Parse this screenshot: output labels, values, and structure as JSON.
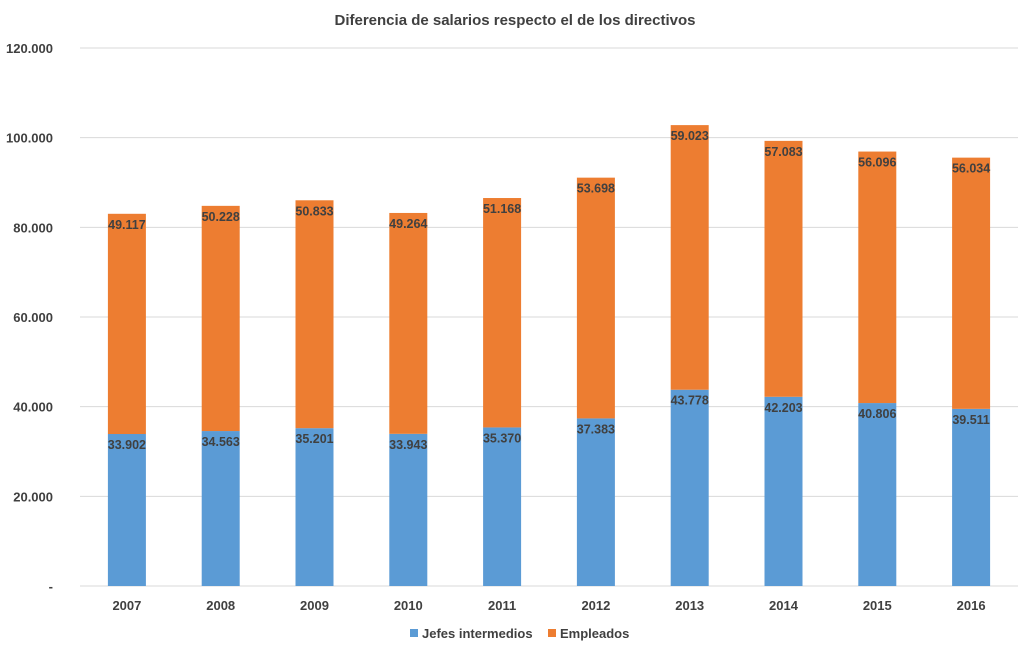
{
  "chart_data": {
    "type": "bar",
    "stacked": true,
    "title": "Diferencia de salarios respecto el de los directivos",
    "xlabel": "",
    "ylabel": "",
    "ylim": [
      0,
      120000
    ],
    "yticks": [
      0,
      20000,
      40000,
      60000,
      80000,
      100000,
      120000
    ],
    "ytick_labels": [
      "-",
      "20.000",
      "40.000",
      "60.000",
      "80.000",
      "100.000",
      "120.000"
    ],
    "grid": true,
    "legend_position": "bottom",
    "categories": [
      "2007",
      "2008",
      "2009",
      "2010",
      "2011",
      "2012",
      "2013",
      "2014",
      "2015",
      "2016"
    ],
    "series": [
      {
        "name": "Jefes intermedios",
        "color": "#5B9BD5",
        "values": [
          33902,
          34563,
          35201,
          33943,
          35370,
          37383,
          43778,
          42203,
          40806,
          39511
        ],
        "labels": [
          "33.902",
          "34.563",
          "35.201",
          "33.943",
          "35.370",
          "37.383",
          "43.778",
          "42.203",
          "40.806",
          "39.511"
        ]
      },
      {
        "name": "Empleados",
        "color": "#ED7D31",
        "values": [
          49117,
          50228,
          50833,
          49264,
          51168,
          53698,
          59023,
          57083,
          56096,
          56034
        ],
        "labels": [
          "49.117",
          "50.228",
          "50.833",
          "49.264",
          "51.168",
          "53.698",
          "59.023",
          "57.083",
          "56.096",
          "56.034"
        ]
      }
    ],
    "gridline_color": "#D9D9D9",
    "text_color": "#404040"
  }
}
